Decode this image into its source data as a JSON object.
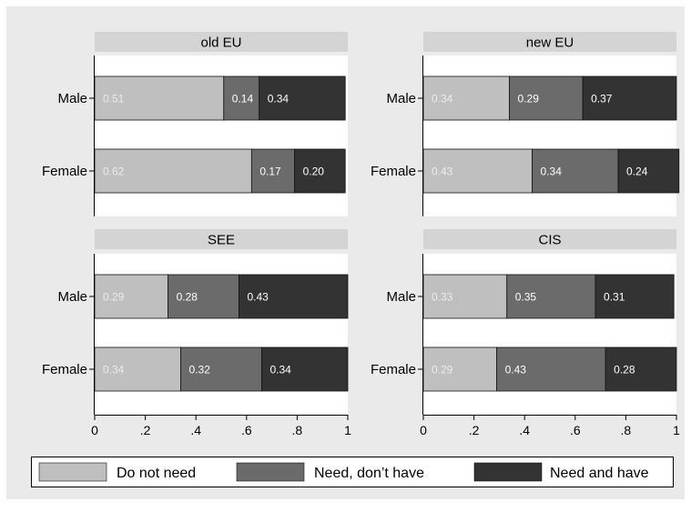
{
  "chart_data": {
    "type": "bar",
    "orientation": "horizontal",
    "stacked": true,
    "facet_by": "region",
    "categories": [
      "Male",
      "Female"
    ],
    "xlim": [
      0,
      1
    ],
    "x_ticks": [
      "0",
      ".2",
      ".4",
      ".6",
      ".8",
      "1"
    ],
    "x_tick_values": [
      0,
      0.2,
      0.4,
      0.6,
      0.8,
      1
    ],
    "grid": false,
    "legend_position": "bottom",
    "legend": [
      {
        "name": "Do not need",
        "color": "#bfbfbf"
      },
      {
        "name": "Need, don’t have",
        "color": "#6b6b6b"
      },
      {
        "name": "Need and have",
        "color": "#333333"
      }
    ],
    "label_colors": [
      "#ececec",
      "#ffffff",
      "#ffffff"
    ],
    "colors": {
      "page_background": "#eaeaea",
      "panel_background": "#ffffff",
      "strip_background": "#d4d4d4",
      "bar_outline": "#111111",
      "text": "#000000"
    },
    "panels": [
      {
        "title": "old EU",
        "series": [
          {
            "name": "Do not need",
            "values": [
              0.51,
              0.62
            ],
            "labels": [
              "0.51",
              "0.62"
            ]
          },
          {
            "name": "Need, don’t have",
            "values": [
              0.14,
              0.17
            ],
            "labels": [
              "0.14",
              "0.17"
            ]
          },
          {
            "name": "Need and have",
            "values": [
              0.34,
              0.2
            ],
            "labels": [
              "0.34",
              "0.20"
            ]
          }
        ]
      },
      {
        "title": "new EU",
        "series": [
          {
            "name": "Do not need",
            "values": [
              0.34,
              0.43
            ],
            "labels": [
              "0.34",
              "0.43"
            ]
          },
          {
            "name": "Need, don’t have",
            "values": [
              0.29,
              0.34
            ],
            "labels": [
              "0.29",
              "0.34"
            ]
          },
          {
            "name": "Need and have",
            "values": [
              0.37,
              0.24
            ],
            "labels": [
              "0.37",
              "0.24"
            ]
          }
        ]
      },
      {
        "title": "SEE",
        "series": [
          {
            "name": "Do not need",
            "values": [
              0.29,
              0.34
            ],
            "labels": [
              "0.29",
              "0.34"
            ]
          },
          {
            "name": "Need, don’t have",
            "values": [
              0.28,
              0.32
            ],
            "labels": [
              "0.28",
              "0.32"
            ]
          },
          {
            "name": "Need and have",
            "values": [
              0.43,
              0.34
            ],
            "labels": [
              "0.43",
              "0.34"
            ]
          }
        ]
      },
      {
        "title": "CIS",
        "series": [
          {
            "name": "Do not need",
            "values": [
              0.33,
              0.29
            ],
            "labels": [
              "0.33",
              "0.29"
            ]
          },
          {
            "name": "Need, don’t have",
            "values": [
              0.35,
              0.43
            ],
            "labels": [
              "0.35",
              "0.43"
            ]
          },
          {
            "name": "Need and have",
            "values": [
              0.31,
              0.28
            ],
            "labels": [
              "0.31",
              "0.28"
            ]
          }
        ]
      }
    ]
  }
}
